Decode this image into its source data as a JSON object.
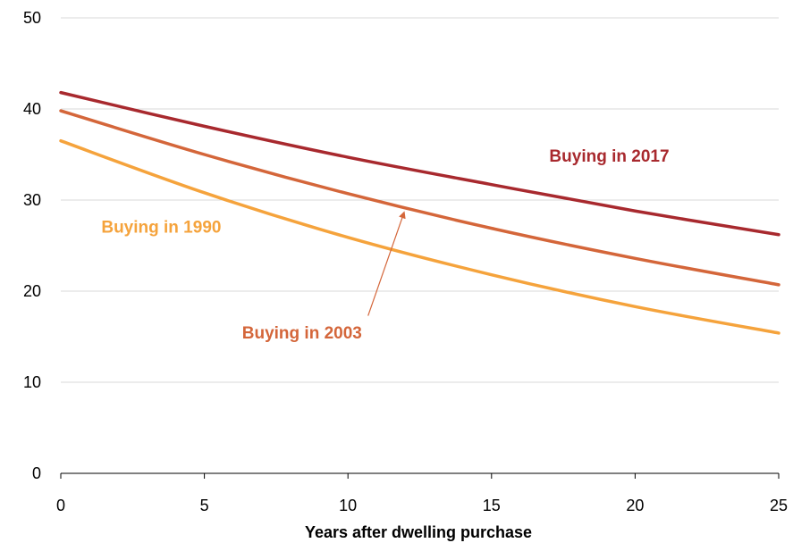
{
  "chart_data": {
    "type": "line",
    "title": "",
    "xlabel": "Years after dwelling purchase",
    "ylabel": "",
    "xlim": [
      0,
      25
    ],
    "ylim": [
      0,
      50
    ],
    "x_ticks": [
      0,
      5,
      10,
      15,
      20,
      25
    ],
    "y_ticks": [
      0,
      10,
      20,
      30,
      40,
      50
    ],
    "grid": true,
    "x": [
      0,
      5,
      10,
      15,
      20,
      25
    ],
    "series": [
      {
        "name": "Buying in 2017",
        "color": "#a8292e",
        "values": [
          41.8,
          38.1,
          34.7,
          31.7,
          28.8,
          26.2
        ]
      },
      {
        "name": "Buying in 2003",
        "color": "#d4663a",
        "values": [
          39.8,
          35.0,
          30.7,
          26.9,
          23.6,
          20.7
        ]
      },
      {
        "name": "Buying in 1990",
        "color": "#f5a33c",
        "values": [
          36.5,
          30.8,
          25.9,
          21.8,
          18.3,
          15.4
        ]
      }
    ]
  }
}
